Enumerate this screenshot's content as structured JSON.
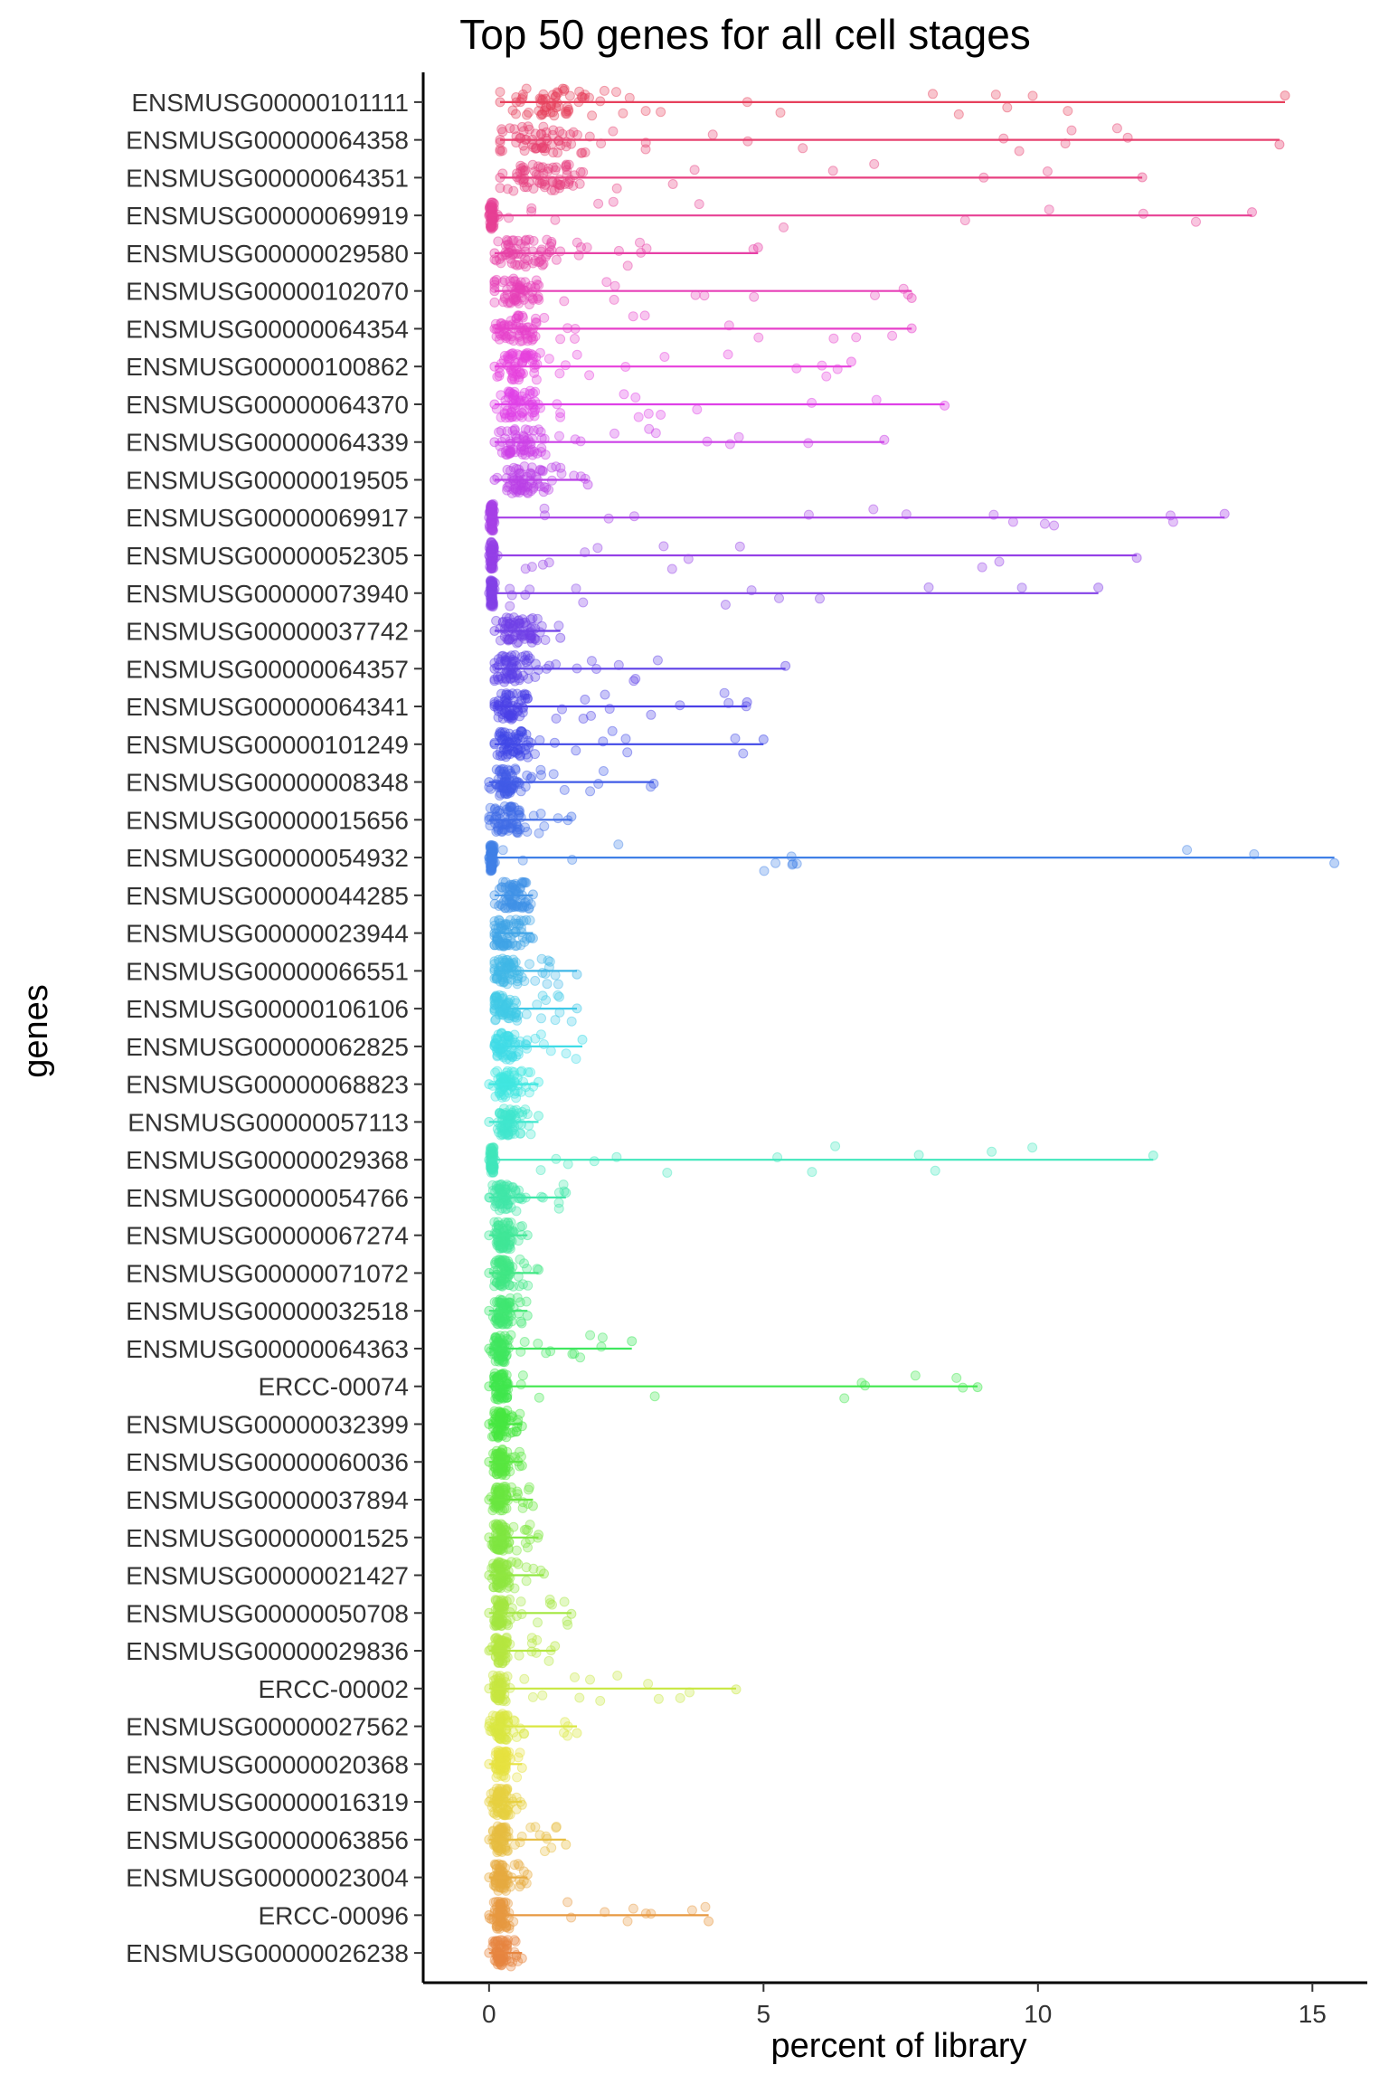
{
  "chart_data": {
    "type": "scatter",
    "title": "Top 50 genes for all cell stages",
    "xlabel": "percent of library",
    "ylabel": "genes",
    "xlim": [
      -1.2,
      16.0
    ],
    "x_ticks": [
      0,
      5,
      10,
      15
    ],
    "grid": false,
    "legend": "none",
    "genes": [
      "ENSMUSG00000101111",
      "ENSMUSG00000064358",
      "ENSMUSG00000064351",
      "ENSMUSG00000069919",
      "ENSMUSG00000029580",
      "ENSMUSG00000102070",
      "ENSMUSG00000064354",
      "ENSMUSG00000100862",
      "ENSMUSG00000064370",
      "ENSMUSG00000064339",
      "ENSMUSG00000019505",
      "ENSMUSG00000069917",
      "ENSMUSG00000052305",
      "ENSMUSG00000073940",
      "ENSMUSG00000037742",
      "ENSMUSG00000064357",
      "ENSMUSG00000064341",
      "ENSMUSG00000101249",
      "ENSMUSG00000008348",
      "ENSMUSG00000015656",
      "ENSMUSG00000054932",
      "ENSMUSG00000044285",
      "ENSMUSG00000023944",
      "ENSMUSG00000066551",
      "ENSMUSG00000106106",
      "ENSMUSG00000062825",
      "ENSMUSG00000068823",
      "ENSMUSG00000057113",
      "ENSMUSG00000029368",
      "ENSMUSG00000054766",
      "ENSMUSG00000067274",
      "ENSMUSG00000071072",
      "ENSMUSG00000032518",
      "ENSMUSG00000064363",
      "ERCC-00074",
      "ENSMUSG00000032399",
      "ENSMUSG00000060036",
      "ENSMUSG00000037894",
      "ENSMUSG00000001525",
      "ENSMUSG00000021427",
      "ENSMUSG00000050708",
      "ENSMUSG00000029836",
      "ERCC-00002",
      "ENSMUSG00000027562",
      "ENSMUSG00000020368",
      "ENSMUSG00000016319",
      "ENSMUSG00000063856",
      "ENSMUSG00000023004",
      "ERCC-00096",
      "ENSMUSG00000026238"
    ],
    "range_min": [
      0.2,
      0.2,
      0.2,
      0.0,
      0.1,
      0.1,
      0.1,
      0.1,
      0.1,
      0.1,
      0.1,
      0.0,
      0.0,
      0.0,
      0.1,
      0.1,
      0.1,
      0.1,
      0.0,
      0.0,
      0.0,
      0.1,
      0.1,
      0.1,
      0.1,
      0.1,
      0.0,
      0.0,
      0.0,
      0.0,
      0.0,
      0.0,
      0.0,
      0.0,
      0.0,
      0.0,
      0.0,
      0.0,
      0.0,
      0.0,
      0.0,
      0.0,
      0.0,
      0.0,
      0.0,
      0.0,
      0.0,
      0.0,
      0.0,
      0.0
    ],
    "range_max": [
      14.5,
      14.4,
      11.9,
      13.9,
      4.9,
      7.7,
      7.7,
      6.6,
      8.3,
      7.2,
      1.8,
      13.4,
      11.8,
      11.1,
      1.3,
      5.4,
      4.7,
      5.0,
      3.0,
      1.5,
      15.4,
      0.8,
      0.8,
      1.6,
      1.6,
      1.7,
      0.9,
      0.9,
      12.1,
      1.4,
      0.7,
      0.9,
      0.7,
      2.6,
      8.9,
      0.6,
      0.6,
      0.8,
      0.9,
      1.0,
      1.5,
      1.2,
      4.5,
      1.6,
      0.6,
      0.6,
      1.4,
      0.7,
      4.0,
      0.6
    ],
    "median": [
      1.1,
      1.0,
      0.9,
      0.05,
      0.6,
      0.5,
      0.5,
      0.5,
      0.5,
      0.5,
      0.6,
      0.05,
      0.05,
      0.05,
      0.5,
      0.4,
      0.4,
      0.4,
      0.3,
      0.3,
      0.05,
      0.4,
      0.3,
      0.3,
      0.3,
      0.3,
      0.3,
      0.3,
      0.05,
      0.25,
      0.25,
      0.25,
      0.25,
      0.2,
      0.2,
      0.2,
      0.2,
      0.2,
      0.2,
      0.2,
      0.2,
      0.2,
      0.2,
      0.2,
      0.2,
      0.2,
      0.2,
      0.2,
      0.2,
      0.2
    ],
    "spread": [
      0.7,
      0.6,
      0.5,
      0.03,
      0.4,
      0.3,
      0.3,
      0.3,
      0.3,
      0.3,
      0.3,
      0.03,
      0.03,
      0.03,
      0.25,
      0.25,
      0.25,
      0.25,
      0.2,
      0.2,
      0.03,
      0.2,
      0.18,
      0.18,
      0.18,
      0.18,
      0.15,
      0.15,
      0.03,
      0.15,
      0.12,
      0.12,
      0.12,
      0.12,
      0.12,
      0.1,
      0.1,
      0.1,
      0.1,
      0.1,
      0.1,
      0.1,
      0.1,
      0.12,
      0.1,
      0.1,
      0.1,
      0.1,
      0.1,
      0.1
    ]
  }
}
